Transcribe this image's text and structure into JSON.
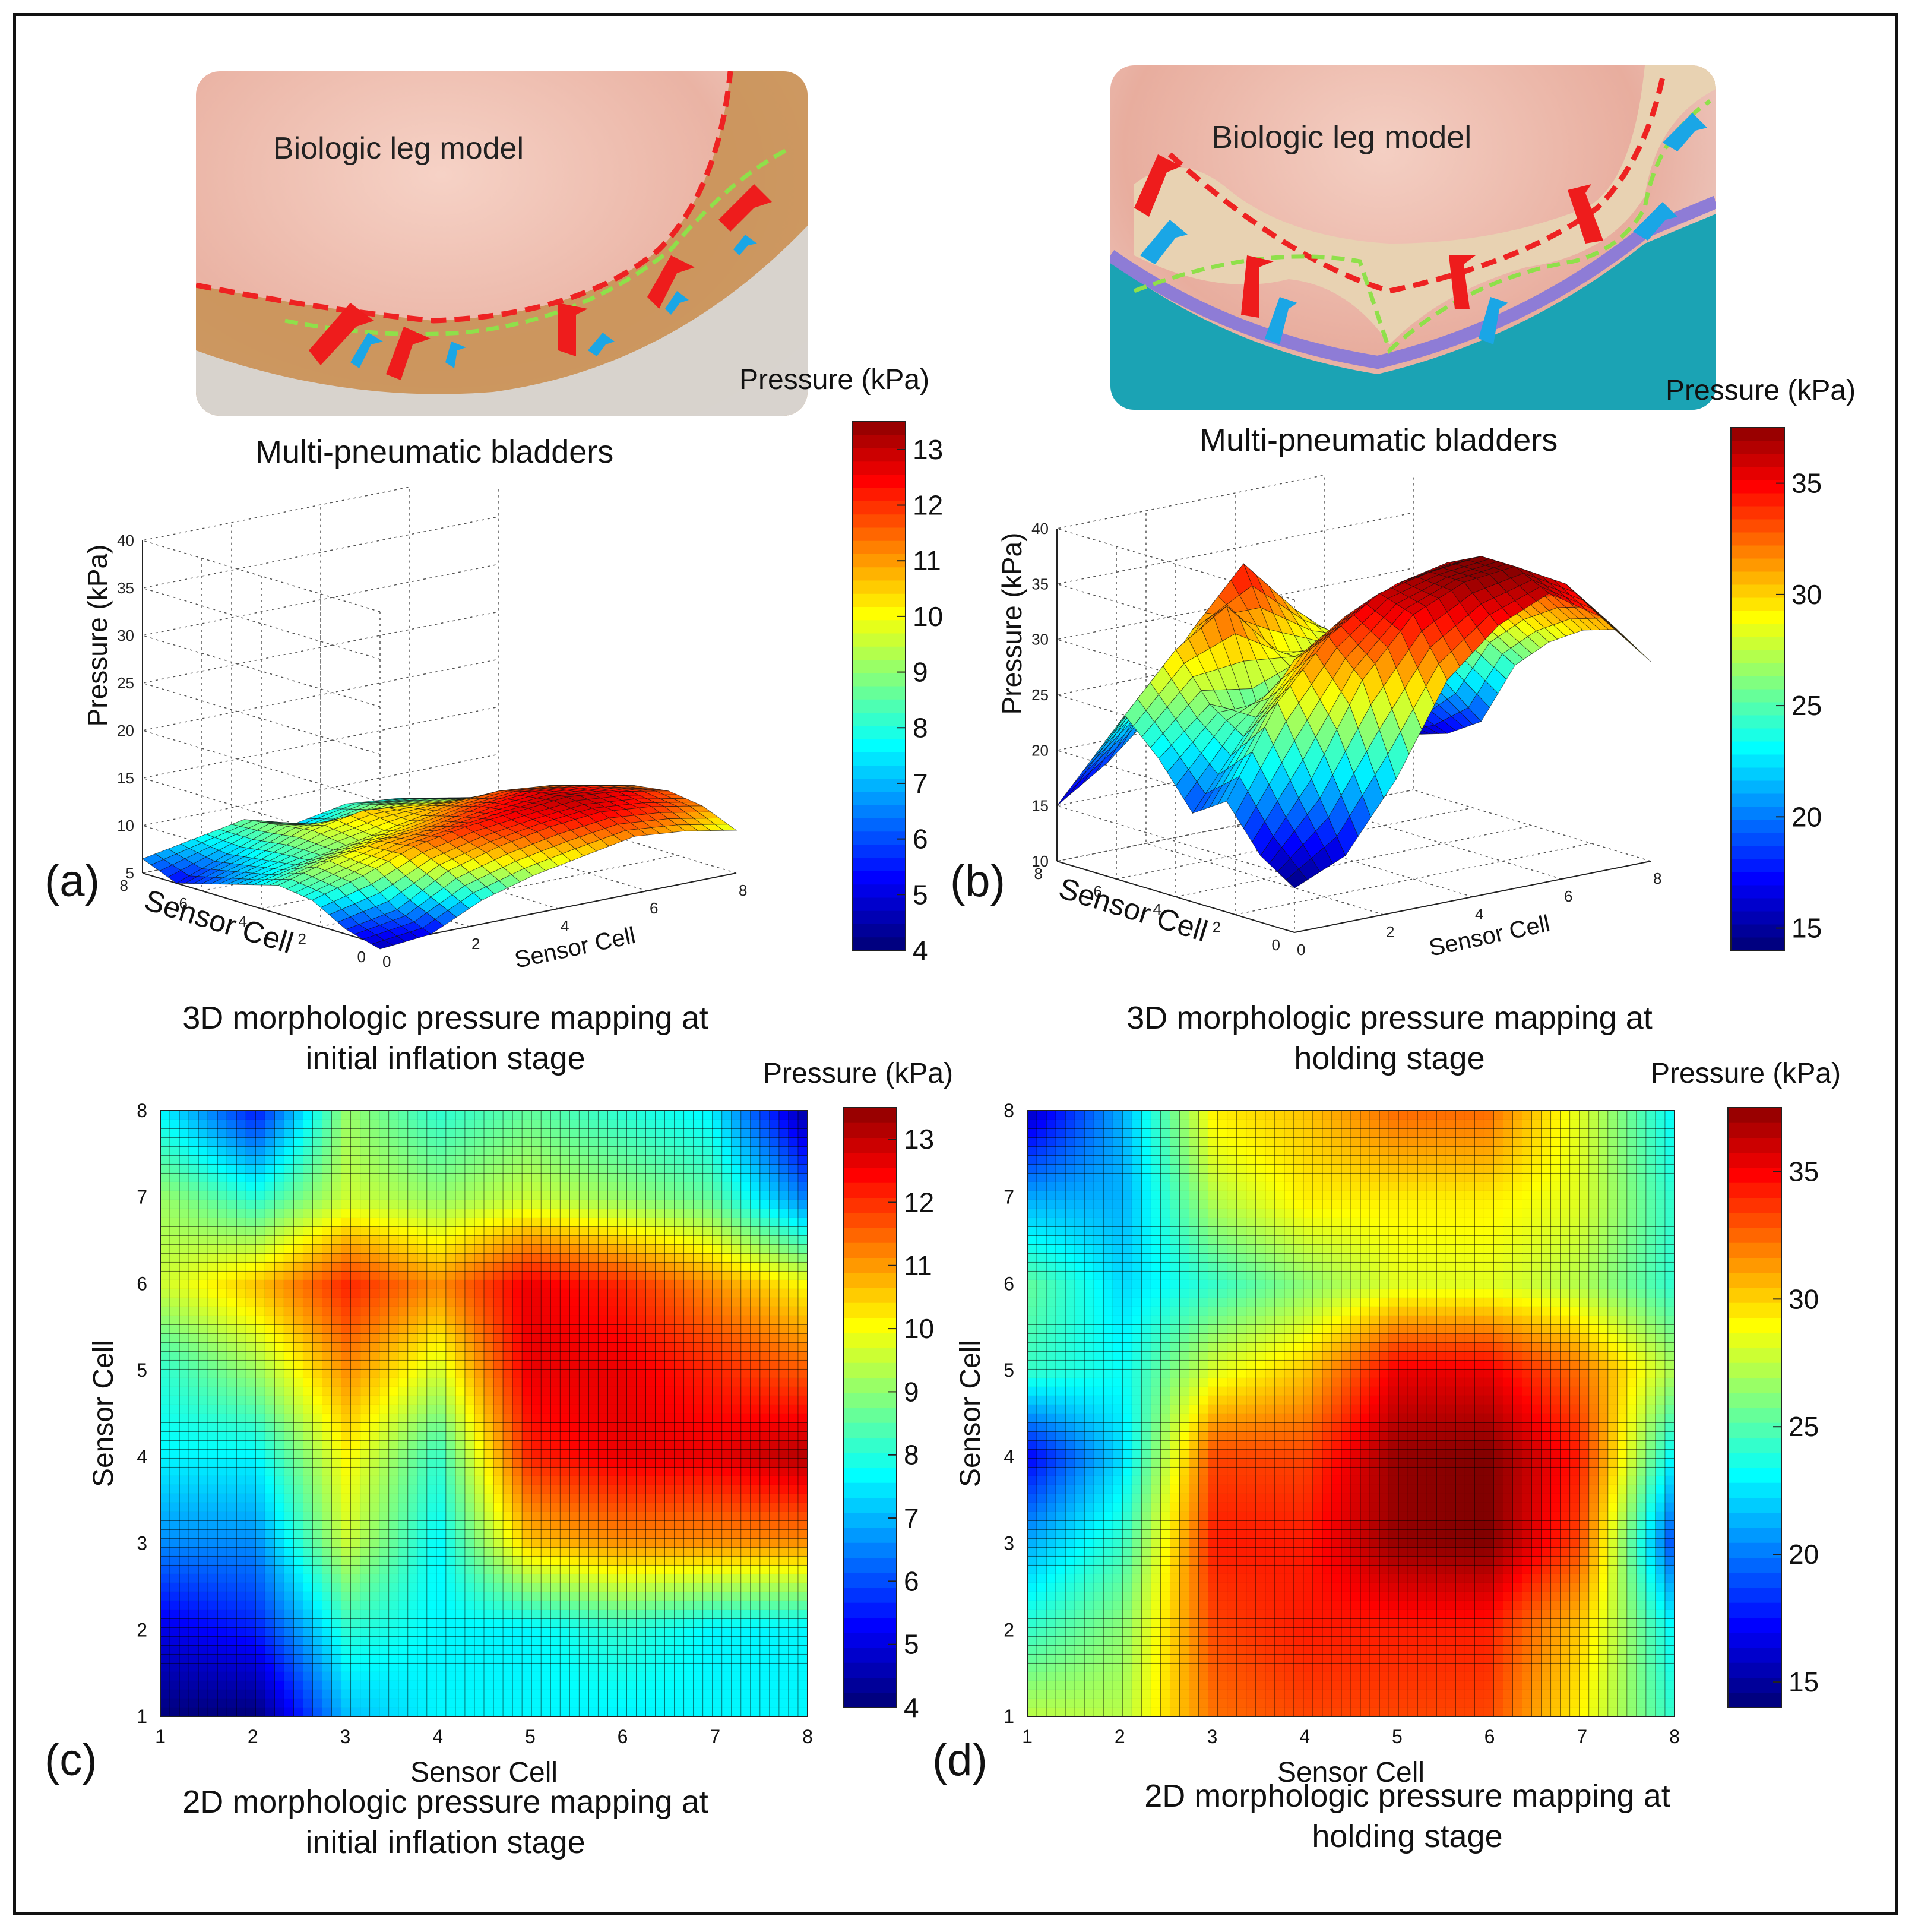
{
  "panels": {
    "a": {
      "label": "(a)",
      "photo_label": "Biologic  leg  model",
      "bladder_label": "Multi-pneumatic  bladders",
      "colorbar_title": "Pressure (kPa)",
      "zlabel": "Pressure (kPa)",
      "xlabel": "Sensor Cell",
      "ylabel": "Sensor Cell",
      "caption_line1": "3D morphologic pressure mapping at",
      "caption_line2": "initial inflation stage"
    },
    "b": {
      "label": "(b)",
      "photo_label": "Biologic  leg  model",
      "bladder_label": "Multi-pneumatic  bladders",
      "colorbar_title": "Pressure (kPa)",
      "zlabel": "Pressure (kPa)",
      "xlabel": "Sensor Cell",
      "ylabel": "Sensor Cell",
      "caption_line1": "3D morphologic pressure mapping at",
      "caption_line2": "holding stage"
    },
    "c": {
      "label": "(c)",
      "colorbar_title": "Pressure (kPa)",
      "xlabel": "Sensor Cell",
      "ylabel": "Sensor Cell",
      "caption_line1": "2D morphologic pressure mapping at",
      "caption_line2": "initial inflation stage"
    },
    "d": {
      "label": "(d)",
      "colorbar_title": "Pressure (kPa)",
      "xlabel": "Sensor Cell",
      "ylabel": "Sensor Cell",
      "caption_line1": "2D morphologic pressure mapping at",
      "caption_line2": "holding stage"
    }
  },
  "colors": {
    "red_arrow": "#ee1c1c",
    "blue_arrow": "#1aa6e6",
    "red_dash": "#ee2222",
    "green_dash": "#8fe04a",
    "skin": "#f0c4b8",
    "bladder": "#c8955a",
    "purple_edge": "#8e7cd6",
    "teal_cloth": "#1ba3b4"
  },
  "chart_data": [
    {
      "id": "a",
      "type": "surface3d",
      "colormap": "jet",
      "x_ticks": [
        "0",
        "2",
        "4",
        "6",
        "8"
      ],
      "y_ticks": [
        "0",
        "2",
        "4",
        "6",
        "8"
      ],
      "z_ticks": [
        "5",
        "10",
        "15",
        "20",
        "25",
        "30",
        "35",
        "40"
      ],
      "zlim": [
        5,
        40
      ],
      "colorbar": {
        "min": 4,
        "max": 13.5,
        "ticks": [
          "4",
          "5",
          "6",
          "7",
          "8",
          "9",
          "10",
          "11",
          "12",
          "13"
        ]
      },
      "grid": true,
      "z": [
        [
          4.5,
          5.0,
          7.5,
          9.0,
          10.0,
          11.0,
          10.5,
          9.5
        ],
        [
          5.5,
          6.5,
          9.5,
          11.0,
          12.0,
          12.5,
          12.0,
          11.0
        ],
        [
          7.5,
          9.0,
          11.0,
          12.0,
          12.5,
          13.0,
          12.5,
          11.5
        ],
        [
          8.0,
          9.5,
          10.5,
          11.0,
          12.0,
          12.5,
          12.0,
          11.0
        ],
        [
          7.0,
          8.0,
          9.0,
          10.0,
          11.0,
          11.5,
          11.0,
          10.0
        ],
        [
          6.0,
          7.5,
          9.5,
          10.5,
          10.0,
          9.5,
          9.0,
          8.0
        ],
        [
          5.0,
          7.0,
          9.0,
          8.0,
          9.0,
          8.5,
          7.5,
          6.5
        ],
        [
          6.5,
          7.5,
          8.5,
          7.0,
          8.0,
          7.5,
          6.5,
          5.5
        ]
      ]
    },
    {
      "id": "b",
      "type": "surface3d",
      "colormap": "jet",
      "x_ticks": [
        "0",
        "2",
        "4",
        "6",
        "8"
      ],
      "y_ticks": [
        "0",
        "2",
        "4",
        "6",
        "8"
      ],
      "z_ticks": [
        "10",
        "15",
        "20",
        "25",
        "30",
        "35",
        "40"
      ],
      "zlim": [
        10,
        40
      ],
      "colorbar": {
        "min": 14,
        "max": 37.5,
        "ticks": [
          "15",
          "20",
          "25",
          "30",
          "35"
        ]
      },
      "grid": true,
      "z": [
        [
          14.0,
          16.0,
          22.0,
          30.0,
          34.0,
          36.0,
          33.0,
          28.0
        ],
        [
          16.0,
          22.0,
          30.0,
          35.0,
          37.0,
          37.5,
          35.0,
          30.0
        ],
        [
          20.0,
          28.0,
          33.0,
          36.0,
          37.0,
          37.5,
          34.0,
          29.0
        ],
        [
          18.0,
          24.0,
          30.0,
          33.0,
          35.0,
          36.0,
          32.0,
          27.0
        ],
        [
          22.0,
          26.0,
          24.0,
          28.0,
          31.0,
          33.0,
          29.0,
          24.0
        ],
        [
          25.0,
          30.0,
          33.0,
          28.0,
          27.0,
          28.0,
          24.0,
          18.0
        ],
        [
          20.0,
          24.0,
          30.0,
          35.0,
          30.0,
          26.0,
          20.0,
          16.0
        ],
        [
          15.0,
          18.0,
          22.0,
          26.0,
          24.0,
          20.0,
          17.0,
          15.0
        ]
      ]
    },
    {
      "id": "c",
      "type": "heatmap",
      "colormap": "jet",
      "x_ticks": [
        "1",
        "2",
        "3",
        "4",
        "5",
        "6",
        "7",
        "8"
      ],
      "y_ticks": [
        "1",
        "2",
        "3",
        "4",
        "5",
        "6",
        "7",
        "8"
      ],
      "xlim": [
        1,
        8
      ],
      "ylim": [
        1,
        8
      ],
      "colorbar": {
        "min": 4,
        "max": 13.5,
        "ticks": [
          "4",
          "5",
          "6",
          "7",
          "8",
          "9",
          "10",
          "11",
          "12",
          "13"
        ]
      },
      "z": [
        [
          4.0,
          4.0,
          7.0,
          7.5,
          7.5,
          7.5,
          7.5,
          7.5
        ],
        [
          5.0,
          5.5,
          8.0,
          7.5,
          7.5,
          8.0,
          7.5,
          7.5
        ],
        [
          6.5,
          6.5,
          9.5,
          7.5,
          10.5,
          11.0,
          11.0,
          11.0
        ],
        [
          7.5,
          7.5,
          10.0,
          8.0,
          12.0,
          12.5,
          12.5,
          13.0
        ],
        [
          8.0,
          9.0,
          11.0,
          9.5,
          12.5,
          12.5,
          12.0,
          11.5
        ],
        [
          9.5,
          10.5,
          12.0,
          11.0,
          12.5,
          12.0,
          11.0,
          10.0
        ],
        [
          9.0,
          8.0,
          9.5,
          9.0,
          9.5,
          9.0,
          8.5,
          6.5
        ],
        [
          7.5,
          5.5,
          9.0,
          8.0,
          8.5,
          8.0,
          7.5,
          4.5
        ]
      ]
    },
    {
      "id": "d",
      "type": "heatmap",
      "colormap": "jet",
      "x_ticks": [
        "1",
        "2",
        "3",
        "4",
        "5",
        "6",
        "7",
        "8"
      ],
      "y_ticks": [
        "1",
        "2",
        "3",
        "4",
        "5",
        "6",
        "7",
        "8"
      ],
      "xlim": [
        1,
        8
      ],
      "ylim": [
        1,
        8
      ],
      "colorbar": {
        "min": 14,
        "max": 37.5,
        "ticks": [
          "15",
          "20",
          "25",
          "30",
          "35"
        ]
      },
      "z": [
        [
          27.0,
          27.0,
          32.0,
          33.0,
          33.0,
          33.0,
          29.0,
          24.0
        ],
        [
          24.0,
          26.0,
          33.0,
          34.0,
          34.0,
          34.0,
          30.0,
          23.0
        ],
        [
          21.0,
          24.0,
          34.0,
          34.0,
          37.0,
          37.5,
          33.0,
          19.0
        ],
        [
          17.0,
          22.0,
          33.0,
          33.0,
          37.0,
          37.5,
          34.0,
          23.0
        ],
        [
          24.0,
          23.0,
          28.0,
          30.0,
          35.0,
          35.0,
          32.0,
          27.0
        ],
        [
          25.0,
          22.0,
          24.0,
          26.0,
          28.0,
          28.0,
          27.0,
          24.0
        ],
        [
          21.0,
          21.0,
          27.0,
          29.0,
          29.0,
          29.0,
          28.0,
          24.0
        ],
        [
          16.0,
          21.0,
          29.0,
          30.0,
          32.0,
          32.0,
          28.0,
          23.0
        ]
      ]
    }
  ]
}
